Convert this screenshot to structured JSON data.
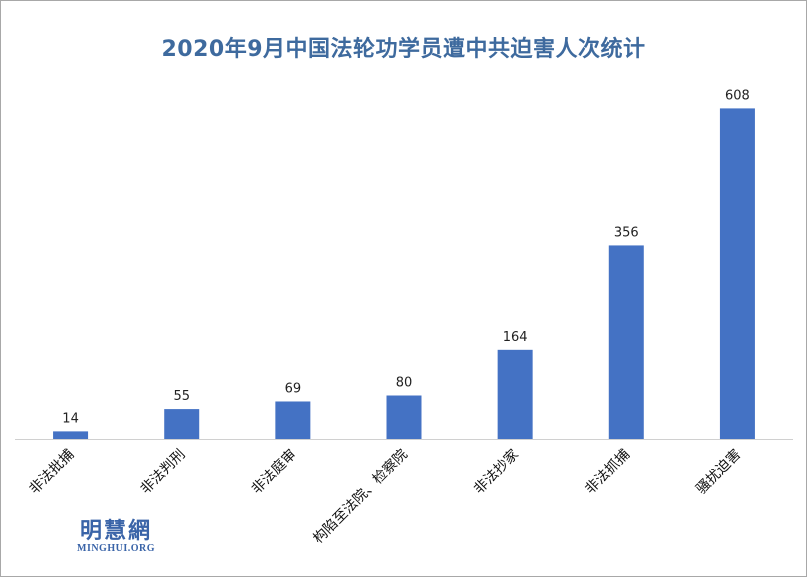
{
  "chart_data": {
    "type": "bar",
    "title": "2020年9月中国法轮功学员遭中共迫害人次统计",
    "categories": [
      "非法批捕",
      "非法判刑",
      "非法庭审",
      "构陷至法院、检察院",
      "非法抄家",
      "非法抓捕",
      "骚扰迫害"
    ],
    "values": [
      14,
      55,
      69,
      80,
      164,
      356,
      608
    ],
    "xlabel": "",
    "ylabel": "",
    "ylim": [
      0,
      640
    ],
    "grid": false,
    "legend": "none",
    "bar_color": "#4472c4",
    "axis_color": "#d0d0d0"
  },
  "logo": {
    "cn": "明慧網",
    "en": "MINGHUI.ORG",
    "color": "#3a64a8"
  }
}
